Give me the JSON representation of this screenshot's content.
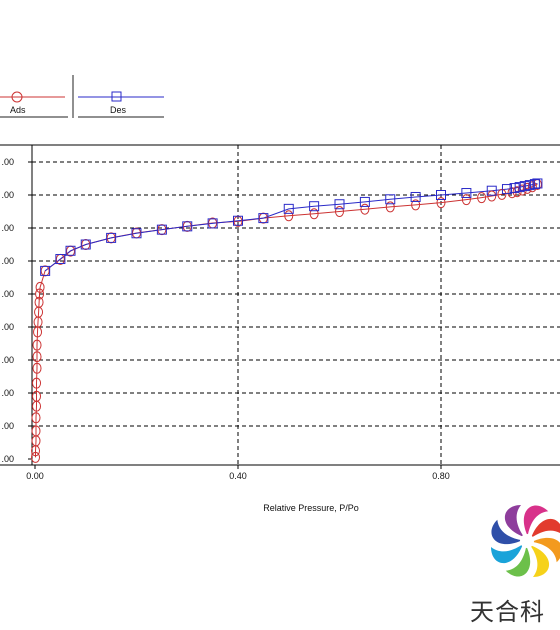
{
  "chart_data": {
    "type": "line",
    "title": "",
    "xlabel": "Relative Pressure, P/Po",
    "ylabel": "",
    "xlim": [
      0,
      1.04
    ],
    "ylim": [
      0,
      9.4
    ],
    "x_ticks": [
      0.0,
      0.4,
      0.8
    ],
    "x_tick_labels": [
      "0.00",
      "0.40",
      "0.80"
    ],
    "y_ticks": [
      0,
      1,
      2,
      3,
      4,
      5,
      6,
      7,
      8,
      9
    ],
    "y_tick_labels": [
      ".00",
      ".00",
      ".00",
      ".00",
      ".00",
      ".00",
      ".00",
      ".00",
      ".00",
      ".00"
    ],
    "grid": true,
    "legend": "top-left",
    "series": [
      {
        "name": "Ads",
        "color": "#cc3333",
        "marker": "circle",
        "points": [
          [
            0.001,
            0.05
          ],
          [
            0.001,
            0.25
          ],
          [
            0.002,
            0.55
          ],
          [
            0.002,
            0.85
          ],
          [
            0.002,
            1.25
          ],
          [
            0.003,
            1.6
          ],
          [
            0.003,
            1.9
          ],
          [
            0.003,
            2.3
          ],
          [
            0.004,
            2.75
          ],
          [
            0.004,
            3.1
          ],
          [
            0.004,
            3.45
          ],
          [
            0.005,
            3.85
          ],
          [
            0.006,
            4.15
          ],
          [
            0.007,
            4.45
          ],
          [
            0.008,
            4.75
          ],
          [
            0.009,
            5.0
          ],
          [
            0.01,
            5.2
          ],
          [
            0.02,
            5.7
          ],
          [
            0.05,
            6.05
          ],
          [
            0.07,
            6.3
          ],
          [
            0.1,
            6.5
          ],
          [
            0.15,
            6.7
          ],
          [
            0.2,
            6.85
          ],
          [
            0.25,
            6.95
          ],
          [
            0.3,
            7.05
          ],
          [
            0.35,
            7.15
          ],
          [
            0.4,
            7.2
          ],
          [
            0.45,
            7.3
          ],
          [
            0.5,
            7.37
          ],
          [
            0.55,
            7.43
          ],
          [
            0.6,
            7.5
          ],
          [
            0.65,
            7.57
          ],
          [
            0.7,
            7.64
          ],
          [
            0.75,
            7.7
          ],
          [
            0.8,
            7.77
          ],
          [
            0.85,
            7.86
          ],
          [
            0.88,
            7.92
          ],
          [
            0.9,
            7.97
          ],
          [
            0.92,
            8.02
          ],
          [
            0.94,
            8.07
          ],
          [
            0.95,
            8.1
          ],
          [
            0.96,
            8.15
          ],
          [
            0.97,
            8.2
          ],
          [
            0.98,
            8.25
          ],
          [
            0.99,
            8.32
          ]
        ]
      },
      {
        "name": "Des",
        "color": "#2a2ac8",
        "marker": "square",
        "points": [
          [
            0.99,
            8.35
          ],
          [
            0.985,
            8.33
          ],
          [
            0.975,
            8.3
          ],
          [
            0.965,
            8.27
          ],
          [
            0.955,
            8.24
          ],
          [
            0.945,
            8.21
          ],
          [
            0.93,
            8.18
          ],
          [
            0.9,
            8.13
          ],
          [
            0.85,
            8.06
          ],
          [
            0.8,
            8.0
          ],
          [
            0.75,
            7.94
          ],
          [
            0.7,
            7.87
          ],
          [
            0.65,
            7.79
          ],
          [
            0.6,
            7.72
          ],
          [
            0.55,
            7.66
          ],
          [
            0.5,
            7.58
          ],
          [
            0.45,
            7.3
          ],
          [
            0.4,
            7.22
          ],
          [
            0.35,
            7.14
          ],
          [
            0.3,
            7.05
          ],
          [
            0.25,
            6.95
          ],
          [
            0.2,
            6.84
          ],
          [
            0.15,
            6.7
          ],
          [
            0.1,
            6.5
          ],
          [
            0.07,
            6.31
          ],
          [
            0.05,
            6.06
          ],
          [
            0.02,
            5.7
          ]
        ]
      }
    ]
  },
  "legend": {
    "ads_label": "Ads",
    "des_label": "Des"
  },
  "logo": {
    "text": "天合科",
    "colors": [
      "#e23b2e",
      "#f39a1e",
      "#f6d21a",
      "#6cc04a",
      "#1aa3d9",
      "#2f4fa8",
      "#8e3d9c",
      "#d8318a"
    ]
  }
}
